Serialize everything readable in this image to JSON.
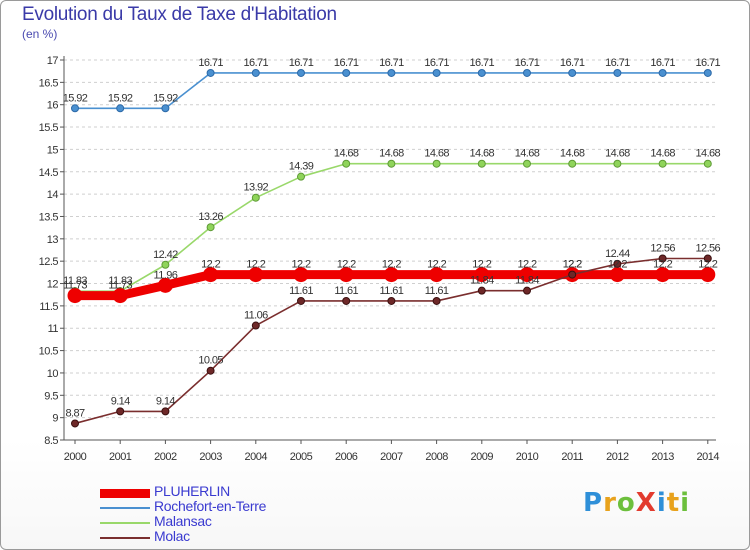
{
  "title": "Evolution du Taux de Taxe d'Habitation",
  "subtitle": "(en %)",
  "brand": {
    "text": "ProXiti",
    "letters": [
      {
        "ch": "P",
        "color": "#2e8fd8"
      },
      {
        "ch": "r",
        "color": "#e8a21c"
      },
      {
        "ch": "o",
        "color": "#6cbf3c"
      },
      {
        "ch": "X",
        "color": "#e23b2e"
      },
      {
        "ch": "i",
        "color": "#2e8fd8"
      },
      {
        "ch": "t",
        "color": "#e8a21c"
      },
      {
        "ch": "i",
        "color": "#6cbf3c"
      }
    ]
  },
  "chart_data": {
    "type": "line",
    "title": "Evolution du Taux de Taxe d'Habitation",
    "ylabel": "(en %)",
    "xlabel": "",
    "x": [
      "2000",
      "2001",
      "2002",
      "2003",
      "2004",
      "2005",
      "2006",
      "2007",
      "2008",
      "2009",
      "2010",
      "2011",
      "2012",
      "2013",
      "2014"
    ],
    "ylim": [
      8.5,
      17
    ],
    "yticks": [
      "8.5",
      "9",
      "9.5",
      "10",
      "10.5",
      "11",
      "11.5",
      "12",
      "12.5",
      "13",
      "13.5",
      "14",
      "14.5",
      "15",
      "15.5",
      "16",
      "16.5",
      "17"
    ],
    "grid": "horizontal dashed",
    "legend": "bottom-left",
    "series": [
      {
        "name": "PLUHERLIN",
        "color": "#ee0000",
        "values": [
          11.73,
          11.73,
          11.96,
          12.2,
          12.2,
          12.2,
          12.2,
          12.2,
          12.2,
          12.2,
          12.2,
          12.2,
          12.2,
          12.2,
          12.2
        ],
        "labels": [
          "11.73",
          "11.73",
          "11.96",
          "12.2",
          "12.2",
          "12.2",
          "12.2",
          "12.2",
          "12.2",
          "12.2",
          "12.2",
          "12.2",
          "12.2",
          "12.2",
          "12.2"
        ]
      },
      {
        "name": "Rochefort-en-Terre",
        "color": "#4a90d0",
        "values": [
          15.92,
          15.92,
          15.92,
          16.71,
          16.71,
          16.71,
          16.71,
          16.71,
          16.71,
          16.71,
          16.71,
          16.71,
          16.71,
          16.71,
          16.71
        ],
        "labels": [
          "15.92",
          "15.92",
          "15.92",
          "16.71",
          "16.71",
          "16.71",
          "16.71",
          "16.71",
          "16.71",
          "16.71",
          "16.71",
          "16.71",
          "16.71",
          "16.71",
          "16.71"
        ]
      },
      {
        "name": "Malansac",
        "color": "#8fd45a",
        "values": [
          11.83,
          11.83,
          12.42,
          13.26,
          13.92,
          14.39,
          14.68,
          14.68,
          14.68,
          14.68,
          14.68,
          14.68,
          14.68,
          14.68,
          14.68
        ],
        "labels": [
          "11.83",
          "11.83",
          "12.42",
          "13.26",
          "13.92",
          "14.39",
          "14.68",
          "14.68",
          "14.68",
          "14.68",
          "14.68",
          "14.68",
          "14.68",
          "14.68",
          "14.68"
        ]
      },
      {
        "name": "Molac",
        "color": "#6e2828",
        "values": [
          8.87,
          9.14,
          9.14,
          10.05,
          11.06,
          11.61,
          11.61,
          11.61,
          11.61,
          11.84,
          11.84,
          12.2,
          12.44,
          12.56,
          12.56
        ],
        "labels": [
          "8.87",
          "9.14",
          "9.14",
          "10.05",
          "11.06",
          "11.61",
          "11.61",
          "11.61",
          "11.61",
          "11.84",
          "11.84",
          "12.2",
          "12.44",
          "12.56",
          "12.56"
        ]
      }
    ]
  }
}
